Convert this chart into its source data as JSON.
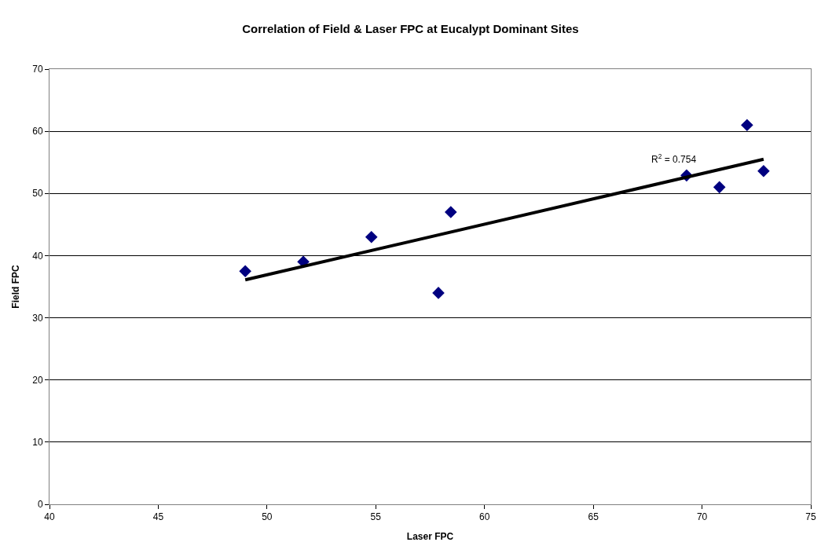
{
  "chart_data": {
    "type": "scatter",
    "title": "Correlation of Field & Laser FPC at Eucalypt Dominant Sites",
    "xlabel": "Laser FPC",
    "ylabel": "Field FPC",
    "x": [
      49.0,
      51.67,
      54.8,
      57.88,
      58.45,
      69.29,
      70.8,
      72.07,
      72.83
    ],
    "series": [
      {
        "color": "#000080",
        "marker": "diamond",
        "values": [
          37.5,
          39.0,
          43.0,
          34.0,
          47.0,
          52.9,
          51.0,
          61.0,
          53.6
        ]
      },
      {
        "type": "line",
        "color": "#000000",
        "marker": "none",
        "x": [
          49.0,
          72.83
        ],
        "values": [
          36.1,
          55.5
        ]
      }
    ],
    "annotations": [
      "R$^{2}$ = 0.754"
    ],
    "xlim": [
      40,
      75
    ],
    "xticks": [
      40,
      45,
      50,
      55,
      60,
      65,
      70,
      75
    ],
    "ylim": [
      0,
      70
    ],
    "yticks": [
      0,
      10,
      20,
      30,
      40,
      50,
      60,
      70
    ],
    "grid": "y"
  }
}
